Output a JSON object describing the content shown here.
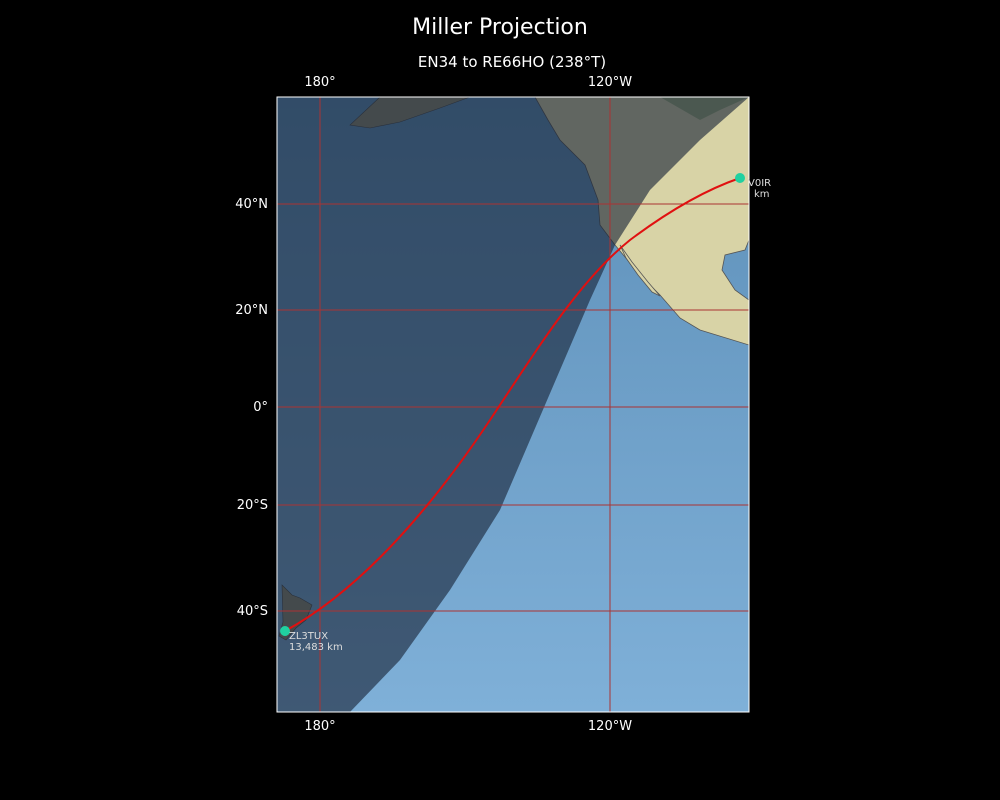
{
  "title": "Miller Projection",
  "subtitle": "EN34 to RE66HO (238°T)",
  "lon_labels_top": [
    "180°",
    "120°W"
  ],
  "lon_labels_bottom": [
    "180°",
    "120°W"
  ],
  "lat_labels": [
    "40°N",
    "20°N",
    "0°",
    "20°S",
    "40°S"
  ],
  "stations": [
    {
      "label": "V0IR",
      "distance": "km"
    },
    {
      "label": "ZL3TUX",
      "distance": "13,483 km"
    }
  ]
}
